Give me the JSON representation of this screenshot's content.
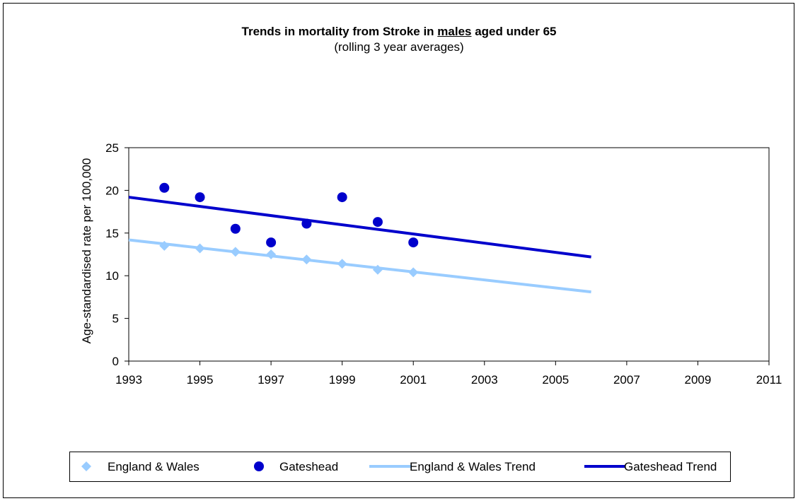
{
  "chart_data": {
    "type": "scatter",
    "title_parts": [
      "Trends in mortality from Stroke in ",
      "males",
      " aged under 65"
    ],
    "subtitle": "(rolling 3 year averages)",
    "ylabel": "Age-standardised rate per 100,000",
    "xlabel": "",
    "xlim": [
      1993,
      2011
    ],
    "ylim": [
      0,
      25
    ],
    "x_ticks": [
      "1993",
      "1995",
      "1997",
      "1999",
      "2001",
      "2003",
      "2005",
      "2007",
      "2009",
      "2011"
    ],
    "y_ticks": [
      "0",
      "5",
      "10",
      "15",
      "20",
      "25"
    ],
    "grid": false,
    "legend_position": "bottom",
    "series": [
      {
        "name": "England & Wales",
        "marker": "diamond",
        "color": "#99ccff",
        "x": [
          1994,
          1995,
          1996,
          1997,
          1998,
          1999,
          2000,
          2001
        ],
        "y": [
          13.5,
          13.2,
          12.8,
          12.5,
          11.9,
          11.4,
          10.7,
          10.4
        ]
      },
      {
        "name": "Gateshead",
        "marker": "circle",
        "color": "#0000cc",
        "x": [
          1994,
          1995,
          1996,
          1997,
          1998,
          1999,
          2000,
          2001
        ],
        "y": [
          20.3,
          19.2,
          15.5,
          13.9,
          16.1,
          19.2,
          16.3,
          13.9
        ]
      }
    ],
    "trends": [
      {
        "name": "England & Wales Trend",
        "color": "#99ccff",
        "x": [
          1993,
          2006
        ],
        "y": [
          14.2,
          8.1
        ]
      },
      {
        "name": "Gateshead Trend",
        "color": "#0000cc",
        "x": [
          1993,
          2006
        ],
        "y": [
          19.2,
          12.2
        ]
      }
    ]
  }
}
